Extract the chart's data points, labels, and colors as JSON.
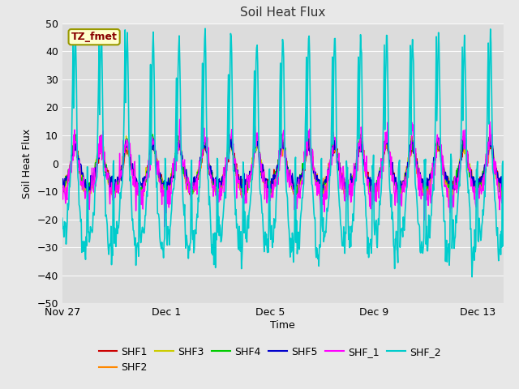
{
  "title": "Soil Heat Flux",
  "xlabel": "Time",
  "ylabel": "Soil Heat Flux",
  "ylim": [
    -50,
    50
  ],
  "yticks": [
    -50,
    -40,
    -30,
    -20,
    -10,
    0,
    10,
    20,
    30,
    40,
    50
  ],
  "n_days": 17,
  "xtick_labels": [
    "Nov 27",
    "Dec 1",
    "Dec 5",
    "Dec 9",
    "Dec 13"
  ],
  "xtick_positions": [
    0,
    4,
    8,
    12,
    16
  ],
  "series_colors": {
    "SHF1": "#cc0000",
    "SHF2": "#ff8800",
    "SHF3": "#cccc00",
    "SHF4": "#00cc00",
    "SHF5": "#0000cc",
    "SHF_1": "#ff00ff",
    "SHF_2": "#00cccc"
  },
  "background_color": "#e8e8e8",
  "plot_bg_color": "#dcdcdc",
  "annotation_text": "TZ_fmet",
  "annotation_bg": "#ffffcc",
  "annotation_border": "#999900",
  "annotation_text_color": "#880000",
  "figsize": [
    6.4,
    4.8
  ],
  "dpi": 100
}
